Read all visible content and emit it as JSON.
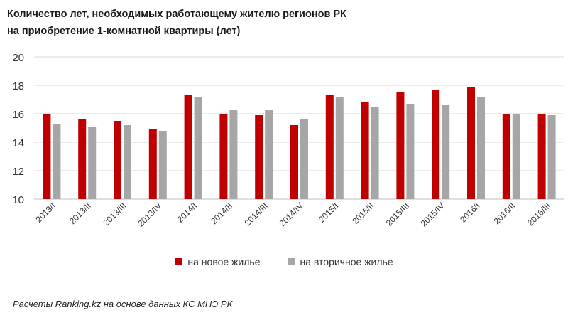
{
  "chart_data": {
    "type": "bar",
    "title": [
      "Количество  лет, необходимых  работающему  жителю регионов РК",
      "на приобретение 1-комнатной  квартиры  (лет)"
    ],
    "xlabel": "",
    "ylabel": "",
    "ylim": [
      10,
      20
    ],
    "yticks": [
      "10",
      "12",
      "14",
      "16",
      "18",
      "20"
    ],
    "grid": true,
    "legend_position": "bottom",
    "categories": [
      "2013/I",
      "2013/II",
      "2013/III",
      "2013/IV",
      "2014/I",
      "2014/II",
      "2014/III",
      "2014/IV",
      "2015/I",
      "2015/II",
      "2015/III",
      "2015/IV",
      "2016/I",
      "2016/II",
      "2016/III"
    ],
    "series": [
      {
        "name": "на новое жилье",
        "color": "#c00000",
        "values": [
          16.0,
          15.65,
          15.5,
          14.9,
          17.3,
          16.0,
          15.9,
          15.2,
          17.3,
          16.8,
          17.55,
          17.7,
          17.85,
          15.95,
          16.0
        ]
      },
      {
        "name": "на вторичное жилье",
        "color": "#a6a6a6",
        "values": [
          15.3,
          15.1,
          15.2,
          14.8,
          17.15,
          16.25,
          16.25,
          15.65,
          17.2,
          16.5,
          16.7,
          16.6,
          17.15,
          15.95,
          15.9
        ]
      }
    ]
  },
  "source": "Расчеты Ranking.kz на основе данных КС МНЭ РК"
}
